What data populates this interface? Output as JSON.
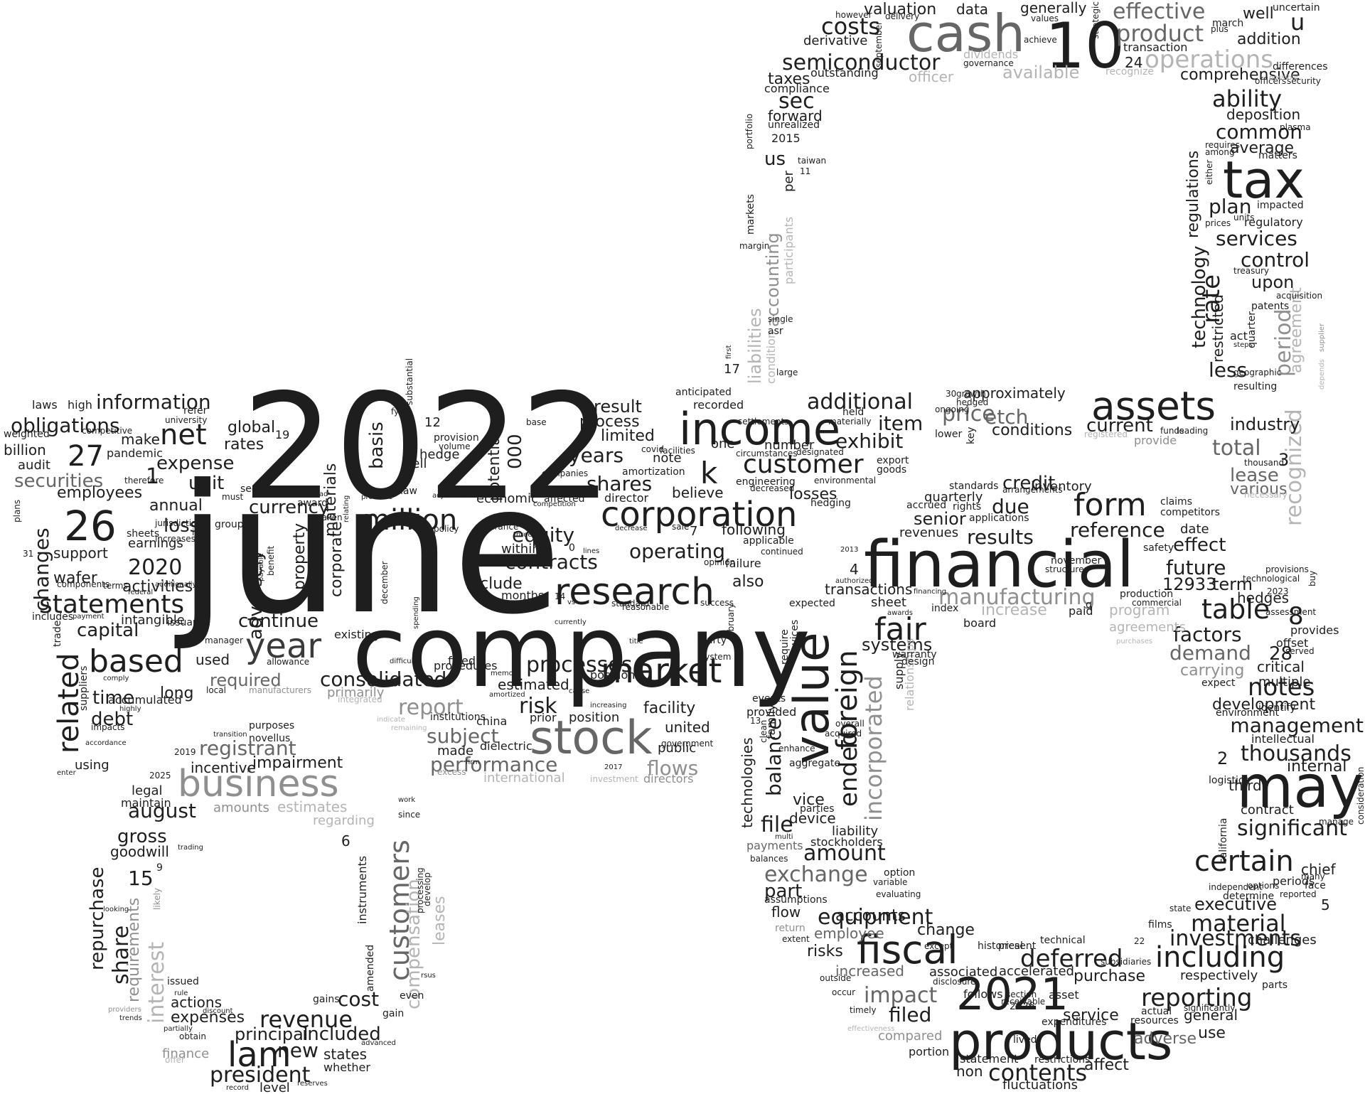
{
  "words": [
    "june",
    "2022",
    "company",
    "financial",
    "cash",
    "10",
    "tax",
    "may",
    "products",
    "2021",
    "income",
    "value",
    "stock",
    "business",
    "assets",
    "fiscal",
    "research",
    "market",
    "corporation",
    "year",
    "lam",
    "customers",
    "customer",
    "million",
    "k",
    "based",
    "related",
    "statements",
    "consolidated",
    "26",
    "27",
    "net",
    "fair",
    "foreign",
    "ended",
    "incorporated",
    "manufacturing",
    "operations",
    "semiconductor",
    "product",
    "effective",
    "costs",
    "form",
    "including",
    "deferred",
    "reporting",
    "contents",
    "certain",
    "significant",
    "notes",
    "table",
    "management",
    "thousands",
    "material",
    "investments",
    "equipment",
    "exchange",
    "amount",
    "impact",
    "revenue",
    "cost",
    "registrant",
    "performance",
    "flows",
    "subject",
    "report",
    "risk",
    "processes",
    "contracts",
    "equity",
    "shares",
    "years",
    "operating",
    "result",
    "information",
    "obligations",
    "securities",
    "expense",
    "unit",
    "loss",
    "annual",
    "2020",
    "changes",
    "capital",
    "time",
    "debt",
    "continue",
    "required",
    "currency",
    "adversely",
    "basis",
    "000",
    "potential",
    "materials",
    "property",
    "corporate",
    "additional",
    "exhibit",
    "item",
    "price",
    "etch",
    "credit",
    "due",
    "results",
    "reference",
    "future",
    "effect",
    "term",
    "factors",
    "demand",
    "carrying",
    "development",
    "executive",
    "periods",
    "service",
    "general",
    "purchase",
    "asset",
    "ability",
    "common",
    "average",
    "plan",
    "services",
    "control",
    "rate",
    "upon",
    "less",
    "regulations",
    "technology",
    "restricted",
    "period",
    "recognized",
    "agreement",
    "total",
    "lease",
    "various",
    "industry",
    "current",
    "conditions",
    "approximately",
    "addition",
    "well",
    "comprehensive",
    "deposition",
    "u",
    "24",
    "dividends",
    "available",
    "officer",
    "valuation",
    "data",
    "generally",
    "taxes",
    "compliance",
    "outstanding",
    "derivative",
    "sec",
    "forward",
    "unrealized",
    "2015",
    "us",
    "accounting",
    "liabilities",
    "per",
    "participants",
    "condition",
    "markets",
    "margin",
    "17",
    "recorded",
    "anticipated",
    "file",
    "balance",
    "vice",
    "device",
    "systems",
    "relationships",
    "supply",
    "senior",
    "transactions",
    "sheet",
    "increase",
    "program",
    "agreements",
    "paid",
    "hedges",
    "offset",
    "critical",
    "multiple",
    "internal",
    "third",
    "contract",
    "chief",
    "challenges",
    "respectively",
    "use",
    "adverse",
    "fluctuations",
    "affect",
    "non",
    "statement",
    "follows",
    "filed",
    "compared",
    "portion",
    "increased",
    "risks",
    "employee",
    "flow",
    "accounts",
    "part",
    "change",
    "associated",
    "accelerated",
    "president",
    "new",
    "included",
    "states",
    "principal",
    "expenses",
    "actions",
    "finance",
    "whether",
    "level",
    "share",
    "repurchase",
    "requirements",
    "interest",
    "compensation",
    "leases",
    "instruments",
    "amended",
    "august",
    "gross",
    "goodwill",
    "15",
    "9",
    "6",
    "legal",
    "maintain",
    "incentive",
    "impairment",
    "amounts",
    "estimates",
    "regarding",
    "accumulated",
    "support",
    "wafer",
    "activities",
    "intangible",
    "employees",
    "billion",
    "audit",
    "weighted",
    "laws",
    "high",
    "pandemic",
    "make",
    "earnings",
    "global",
    "rates",
    "1",
    "19",
    "hedge",
    "sell",
    "12",
    "economic",
    "affected",
    "within",
    "include",
    "months",
    "also",
    "following",
    "losses",
    "number",
    "note",
    "believe",
    "limited",
    "one",
    "process",
    "director",
    "amortization",
    "existing",
    "used",
    "long",
    "primarily",
    "estimated",
    "positions",
    "fixed",
    "made",
    "dielectric",
    "china",
    "prior",
    "position",
    "facility",
    "united",
    "public",
    "directors",
    "international",
    "institutions",
    "procedures",
    "semiconductor",
    "2019",
    "using",
    "purposes",
    "novellus",
    "issued",
    "gain",
    "even",
    "gains",
    "cost",
    "lived",
    "expenditures",
    "restrictions",
    "quarterly",
    "rights",
    "revenues",
    "applications",
    "inventory",
    "claims",
    "competitors",
    "date",
    "safety",
    "production",
    "commercial",
    "12933",
    "2",
    "3",
    "4",
    "5",
    "8",
    "28",
    "q",
    "board",
    "index",
    "systems",
    "warranty",
    "design",
    "events",
    "provided",
    "technologies",
    "family",
    "require",
    "devices",
    "enhance",
    "aggregate",
    "parties",
    "payments",
    "balances",
    "liability",
    "stockholders",
    "option",
    "variable",
    "evaluating",
    "assumptions",
    "return",
    "extent",
    "except",
    "historical",
    "disclosure",
    "present",
    "section",
    "2026",
    "receivable",
    "technical",
    "end",
    "22",
    "actual",
    "resources",
    "films",
    "state",
    "independent",
    "determine",
    "options",
    "reported",
    "parts",
    "logistics",
    "california",
    "environment",
    "identify",
    "intellectual",
    "face",
    "many",
    "manage",
    "consideration",
    "expect",
    "served",
    "provides",
    "assessment",
    "buy",
    "2023",
    "provisions",
    "technological",
    "structures",
    "november",
    "arrangements",
    "standards",
    "accrued",
    "export",
    "goods",
    "held",
    "materially",
    "environmental",
    "hedging",
    "designated",
    "decreased",
    "engineering",
    "circumstances",
    "settlements",
    "lower",
    "growth",
    "hedged",
    "30",
    "key",
    "ongoing",
    "funds",
    "leading",
    "disclosure",
    "provide",
    "registered",
    "thousand",
    "necessary",
    "significantly",
    "subsidiaries",
    "first",
    "large",
    "asr",
    "single",
    "taiwan",
    "11",
    "portfolio",
    "prices",
    "units",
    "regulatory",
    "impacted",
    "either",
    "requires",
    "among",
    "matters",
    "plasma",
    "treasury",
    "acquisition",
    "patents",
    "quarter",
    "act",
    "steps",
    "supplier",
    "depends",
    "geographic",
    "resulting",
    "officers",
    "security",
    "differences",
    "possible",
    "recognize",
    "transaction",
    "plus",
    "march",
    "strategic",
    "achieve",
    "values",
    "governance",
    "september",
    "delivery",
    "however",
    "uncertain",
    "fy21",
    "base",
    "substantial",
    "provision",
    "volume",
    "adjustments",
    "law",
    "probable",
    "taken",
    "award",
    "lead",
    "relating",
    "payable",
    "benefit",
    "must",
    "manager",
    "equivalents",
    "group",
    "see",
    "therefore",
    "ira",
    "sheets",
    "competitive",
    "university",
    "refer",
    "jurisdictions",
    "increases",
    "additionally",
    "federal",
    "includes",
    "payment",
    "components",
    "trade",
    "suppliers",
    "comply",
    "impacts",
    "accordance",
    "enter",
    "plans",
    "31",
    "terms",
    "issuance",
    "allowance",
    "manufacturers",
    "local",
    "integrated",
    "indicate",
    "remaining",
    "transition",
    "highly",
    "title",
    "memory",
    "amortized",
    "difficult",
    "spending",
    "december",
    "policy",
    "assurance",
    "three",
    "competition",
    "currently",
    "companies",
    "decrease",
    "lines",
    "sale",
    "standard",
    "cause",
    "increasing",
    "opinion",
    "success",
    "government",
    "system",
    "party",
    "february",
    "failure",
    "continued",
    "applicable",
    "facilities",
    "covid",
    "reasonable",
    "april",
    "vs",
    "14",
    "0",
    "7",
    "2025",
    "2017",
    "investment",
    "excess",
    "work",
    "since",
    "processing",
    "develop",
    "rsus",
    "firm",
    "trading",
    "looking",
    "likely",
    "rule",
    "discount",
    "partially",
    "trends",
    "providers",
    "offer",
    "obtain",
    "advanced",
    "record",
    "reserves",
    "timely",
    "outside",
    "occur",
    "effectiveness",
    "overall",
    "acquired",
    "clean",
    "multi",
    "13",
    "financing",
    "authorized",
    "2013",
    "expected",
    "awards",
    "purchases",
    "program"
  ],
  "icon": "stylized-number-word-cloud"
}
